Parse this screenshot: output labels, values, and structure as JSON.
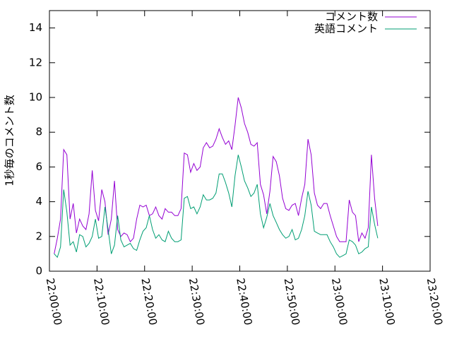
{
  "chart_data": {
    "type": "line",
    "ylabel": "1秒毎のコメント数",
    "x": [
      "22:01:00",
      "22:01:40",
      "22:02:20",
      "22:03:00",
      "22:03:40",
      "22:04:20",
      "22:05:00",
      "22:05:40",
      "22:06:20",
      "22:07:00",
      "22:07:40",
      "22:08:20",
      "22:09:00",
      "22:09:40",
      "22:10:20",
      "22:11:00",
      "22:11:40",
      "22:12:20",
      "22:13:00",
      "22:13:40",
      "22:14:20",
      "22:15:00",
      "22:15:40",
      "22:16:20",
      "22:17:00",
      "22:17:40",
      "22:18:20",
      "22:19:00",
      "22:19:40",
      "22:20:20",
      "22:21:00",
      "22:21:40",
      "22:22:20",
      "22:23:00",
      "22:23:40",
      "22:24:20",
      "22:25:00",
      "22:25:40",
      "22:26:20",
      "22:27:00",
      "22:27:40",
      "22:28:20",
      "22:29:00",
      "22:29:40",
      "22:30:20",
      "22:31:00",
      "22:31:40",
      "22:32:20",
      "22:33:00",
      "22:33:40",
      "22:34:20",
      "22:35:00",
      "22:35:40",
      "22:36:20",
      "22:37:00",
      "22:37:40",
      "22:38:20",
      "22:39:00",
      "22:39:40",
      "22:40:20",
      "22:41:00",
      "22:41:40",
      "22:42:20",
      "22:43:00",
      "22:43:40",
      "22:44:20",
      "22:45:00",
      "22:45:40",
      "22:46:20",
      "22:47:00",
      "22:47:40",
      "22:48:20",
      "22:49:00",
      "22:49:40",
      "22:50:20",
      "22:51:00",
      "22:51:40",
      "22:52:20",
      "22:53:00",
      "22:53:40",
      "22:54:20",
      "22:55:00",
      "22:55:40",
      "22:56:20",
      "22:57:00",
      "22:57:40",
      "22:58:20",
      "22:59:00",
      "22:59:40",
      "23:00:20",
      "23:01:00",
      "23:01:40",
      "23:02:20",
      "23:03:00",
      "23:03:40",
      "23:04:20",
      "23:05:00",
      "23:05:40",
      "23:06:20",
      "23:07:00",
      "23:07:40",
      "23:08:20",
      "23:09:00"
    ],
    "series": [
      {
        "name": "コメント数",
        "color": "#9400d3",
        "values": [
          1.0,
          1.9,
          3.0,
          7.0,
          6.7,
          3.0,
          3.9,
          2.2,
          3.0,
          2.6,
          2.4,
          3.3,
          5.8,
          3.5,
          2.9,
          4.7,
          4.0,
          2.1,
          3.0,
          5.2,
          2.4,
          2.0,
          2.2,
          2.1,
          1.7,
          1.9,
          3.0,
          3.8,
          3.7,
          3.8,
          3.2,
          3.3,
          3.7,
          3.2,
          3.0,
          3.6,
          3.4,
          3.4,
          3.2,
          3.2,
          3.6,
          6.8,
          6.7,
          5.7,
          6.2,
          5.8,
          6.0,
          7.1,
          7.4,
          7.1,
          7.2,
          7.6,
          8.2,
          7.7,
          7.3,
          7.5,
          7.0,
          8.4,
          10.0,
          9.4,
          8.5,
          8.0,
          7.3,
          7.2,
          7.4,
          5.0,
          4.4,
          3.3,
          4.6,
          6.6,
          6.3,
          5.5,
          4.2,
          3.6,
          3.5,
          3.8,
          3.9,
          3.2,
          4.2,
          5.0,
          7.6,
          6.7,
          4.5,
          3.8,
          3.6,
          3.9,
          3.9,
          3.2,
          2.6,
          2.0,
          1.7,
          1.7,
          1.7,
          4.1,
          3.4,
          3.2,
          1.7,
          2.2,
          1.9,
          2.5,
          6.7,
          4.2,
          2.6
        ]
      },
      {
        "name": "英語コメント",
        "color": "#009e73",
        "values": [
          1.0,
          0.8,
          1.4,
          4.7,
          3.4,
          1.5,
          1.7,
          1.1,
          2.1,
          2.0,
          1.4,
          1.6,
          2.0,
          3.0,
          1.9,
          2.0,
          3.7,
          2.4,
          1.0,
          1.5,
          3.2,
          1.8,
          1.4,
          1.5,
          1.6,
          1.3,
          1.2,
          1.8,
          2.3,
          2.5,
          3.2,
          2.4,
          1.9,
          2.1,
          1.8,
          1.7,
          2.3,
          1.9,
          1.7,
          1.7,
          1.8,
          4.2,
          4.3,
          3.6,
          3.7,
          3.3,
          3.7,
          4.4,
          4.1,
          4.1,
          4.2,
          4.5,
          5.6,
          5.6,
          5.1,
          4.5,
          3.7,
          5.5,
          6.7,
          6.0,
          5.2,
          4.8,
          4.3,
          4.5,
          5.0,
          3.3,
          2.5,
          3.1,
          3.9,
          3.2,
          2.8,
          2.4,
          2.1,
          1.9,
          2.0,
          2.4,
          1.8,
          1.9,
          2.4,
          3.2,
          4.6,
          3.8,
          2.3,
          2.2,
          2.1,
          2.1,
          2.1,
          1.7,
          1.4,
          1.0,
          0.8,
          0.9,
          1.0,
          1.8,
          1.7,
          1.5,
          1.0,
          1.1,
          1.3,
          1.4,
          3.7,
          2.7,
          1.9
        ]
      }
    ],
    "xlim": [
      "22:00:00",
      "23:20:00"
    ],
    "xticks": [
      "22:00:00",
      "22:10:00",
      "22:20:00",
      "22:30:00",
      "22:40:00",
      "22:50:00",
      "23:00:00",
      "23:10:00",
      "23:20:00"
    ],
    "ylim": [
      0,
      15
    ],
    "yticks": [
      0,
      2,
      4,
      6,
      8,
      10,
      12,
      14
    ],
    "grid": false,
    "legend": "top-right"
  }
}
